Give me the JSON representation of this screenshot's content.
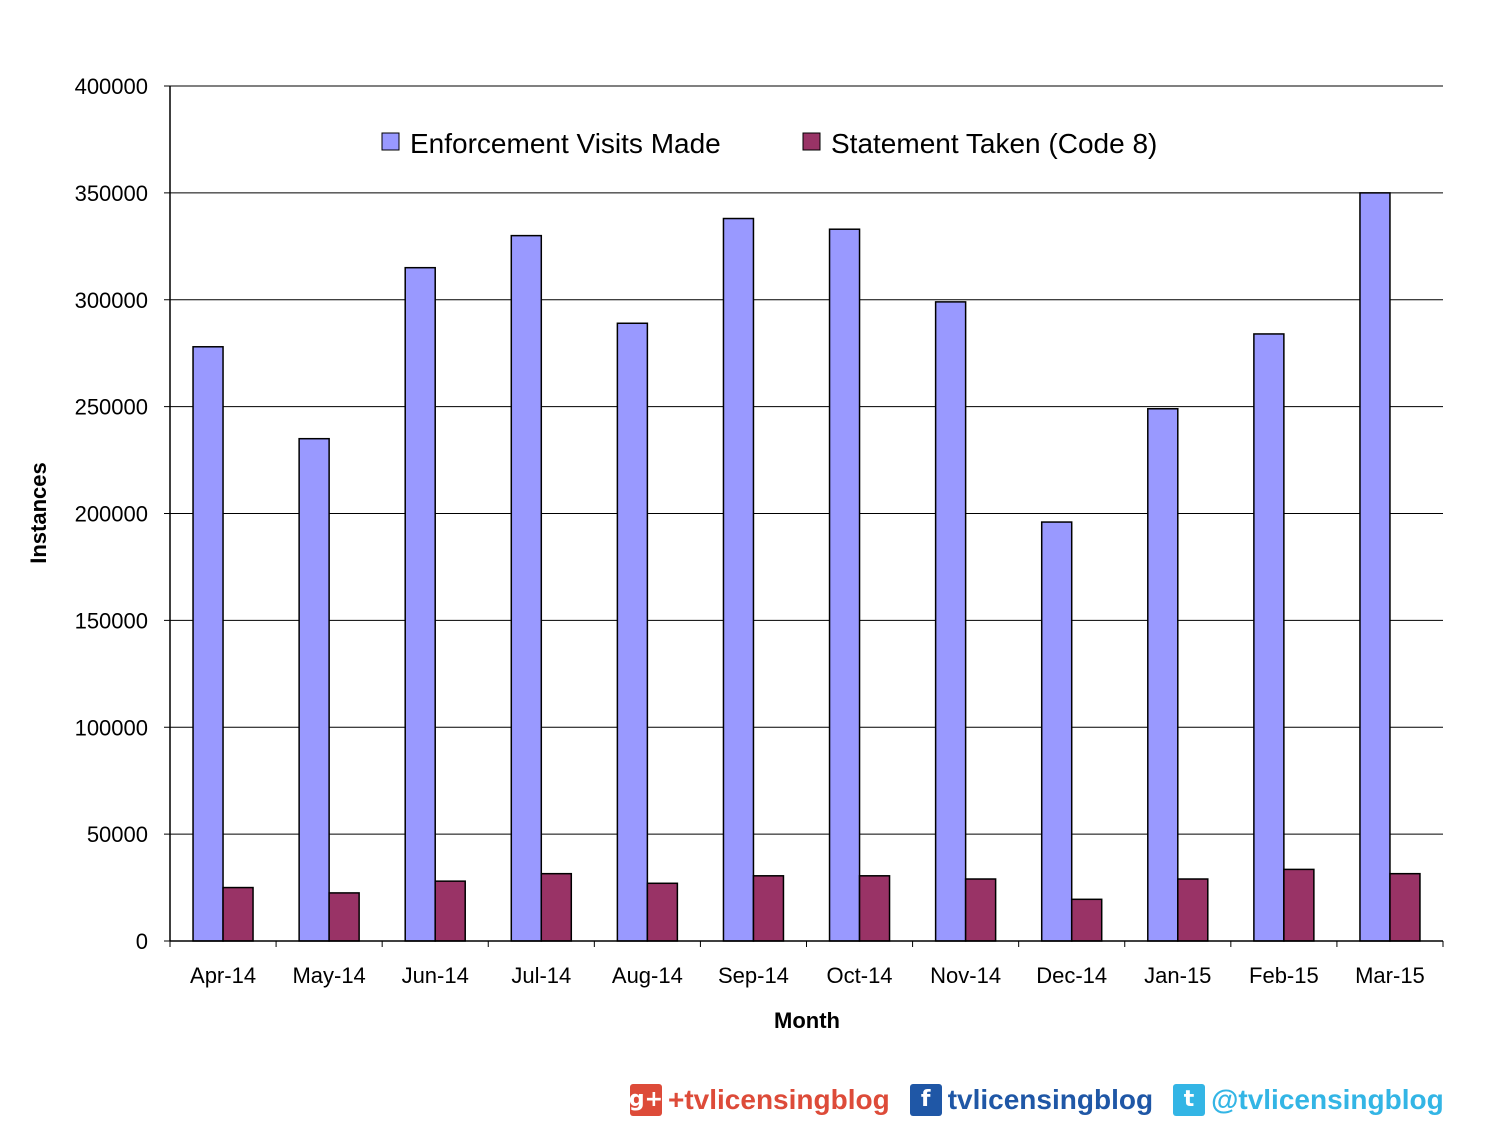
{
  "chart_data": {
    "type": "bar",
    "title": "",
    "xlabel": "Month",
    "ylabel": "Instances",
    "ylim": [
      0,
      400000
    ],
    "yticks": [
      "0",
      "50000",
      "100000",
      "150000",
      "200000",
      "250000",
      "300000",
      "350000",
      "400000"
    ],
    "grid": true,
    "legend_position": "top",
    "categories": [
      "Apr-14",
      "May-14",
      "Jun-14",
      "Jul-14",
      "Aug-14",
      "Sep-14",
      "Oct-14",
      "Nov-14",
      "Dec-14",
      "Jan-15",
      "Feb-15",
      "Mar-15"
    ],
    "series": [
      {
        "name": "Enforcement Visits Made",
        "color": "#9999ff",
        "values": [
          278000,
          235000,
          315000,
          330000,
          289000,
          338000,
          333000,
          299000,
          196000,
          249000,
          284000,
          350000
        ]
      },
      {
        "name": "Statement Taken (Code 8)",
        "color": "#993366",
        "values": [
          25000,
          22500,
          28000,
          31500,
          27000,
          30500,
          30500,
          29000,
          19500,
          29000,
          33500,
          31500
        ]
      }
    ]
  },
  "footer": {
    "gplus": {
      "icon": "google-plus-icon",
      "glyph": "g+",
      "text": "+tvlicensingblog",
      "color": "#dd4b39"
    },
    "facebook": {
      "icon": "facebook-icon",
      "glyph": "f",
      "text": "tvlicensingblog",
      "color": "#1f57a6"
    },
    "twitter": {
      "icon": "twitter-icon",
      "glyph": "t",
      "text": "@tvlicensingblog",
      "color": "#33b5e5"
    }
  }
}
